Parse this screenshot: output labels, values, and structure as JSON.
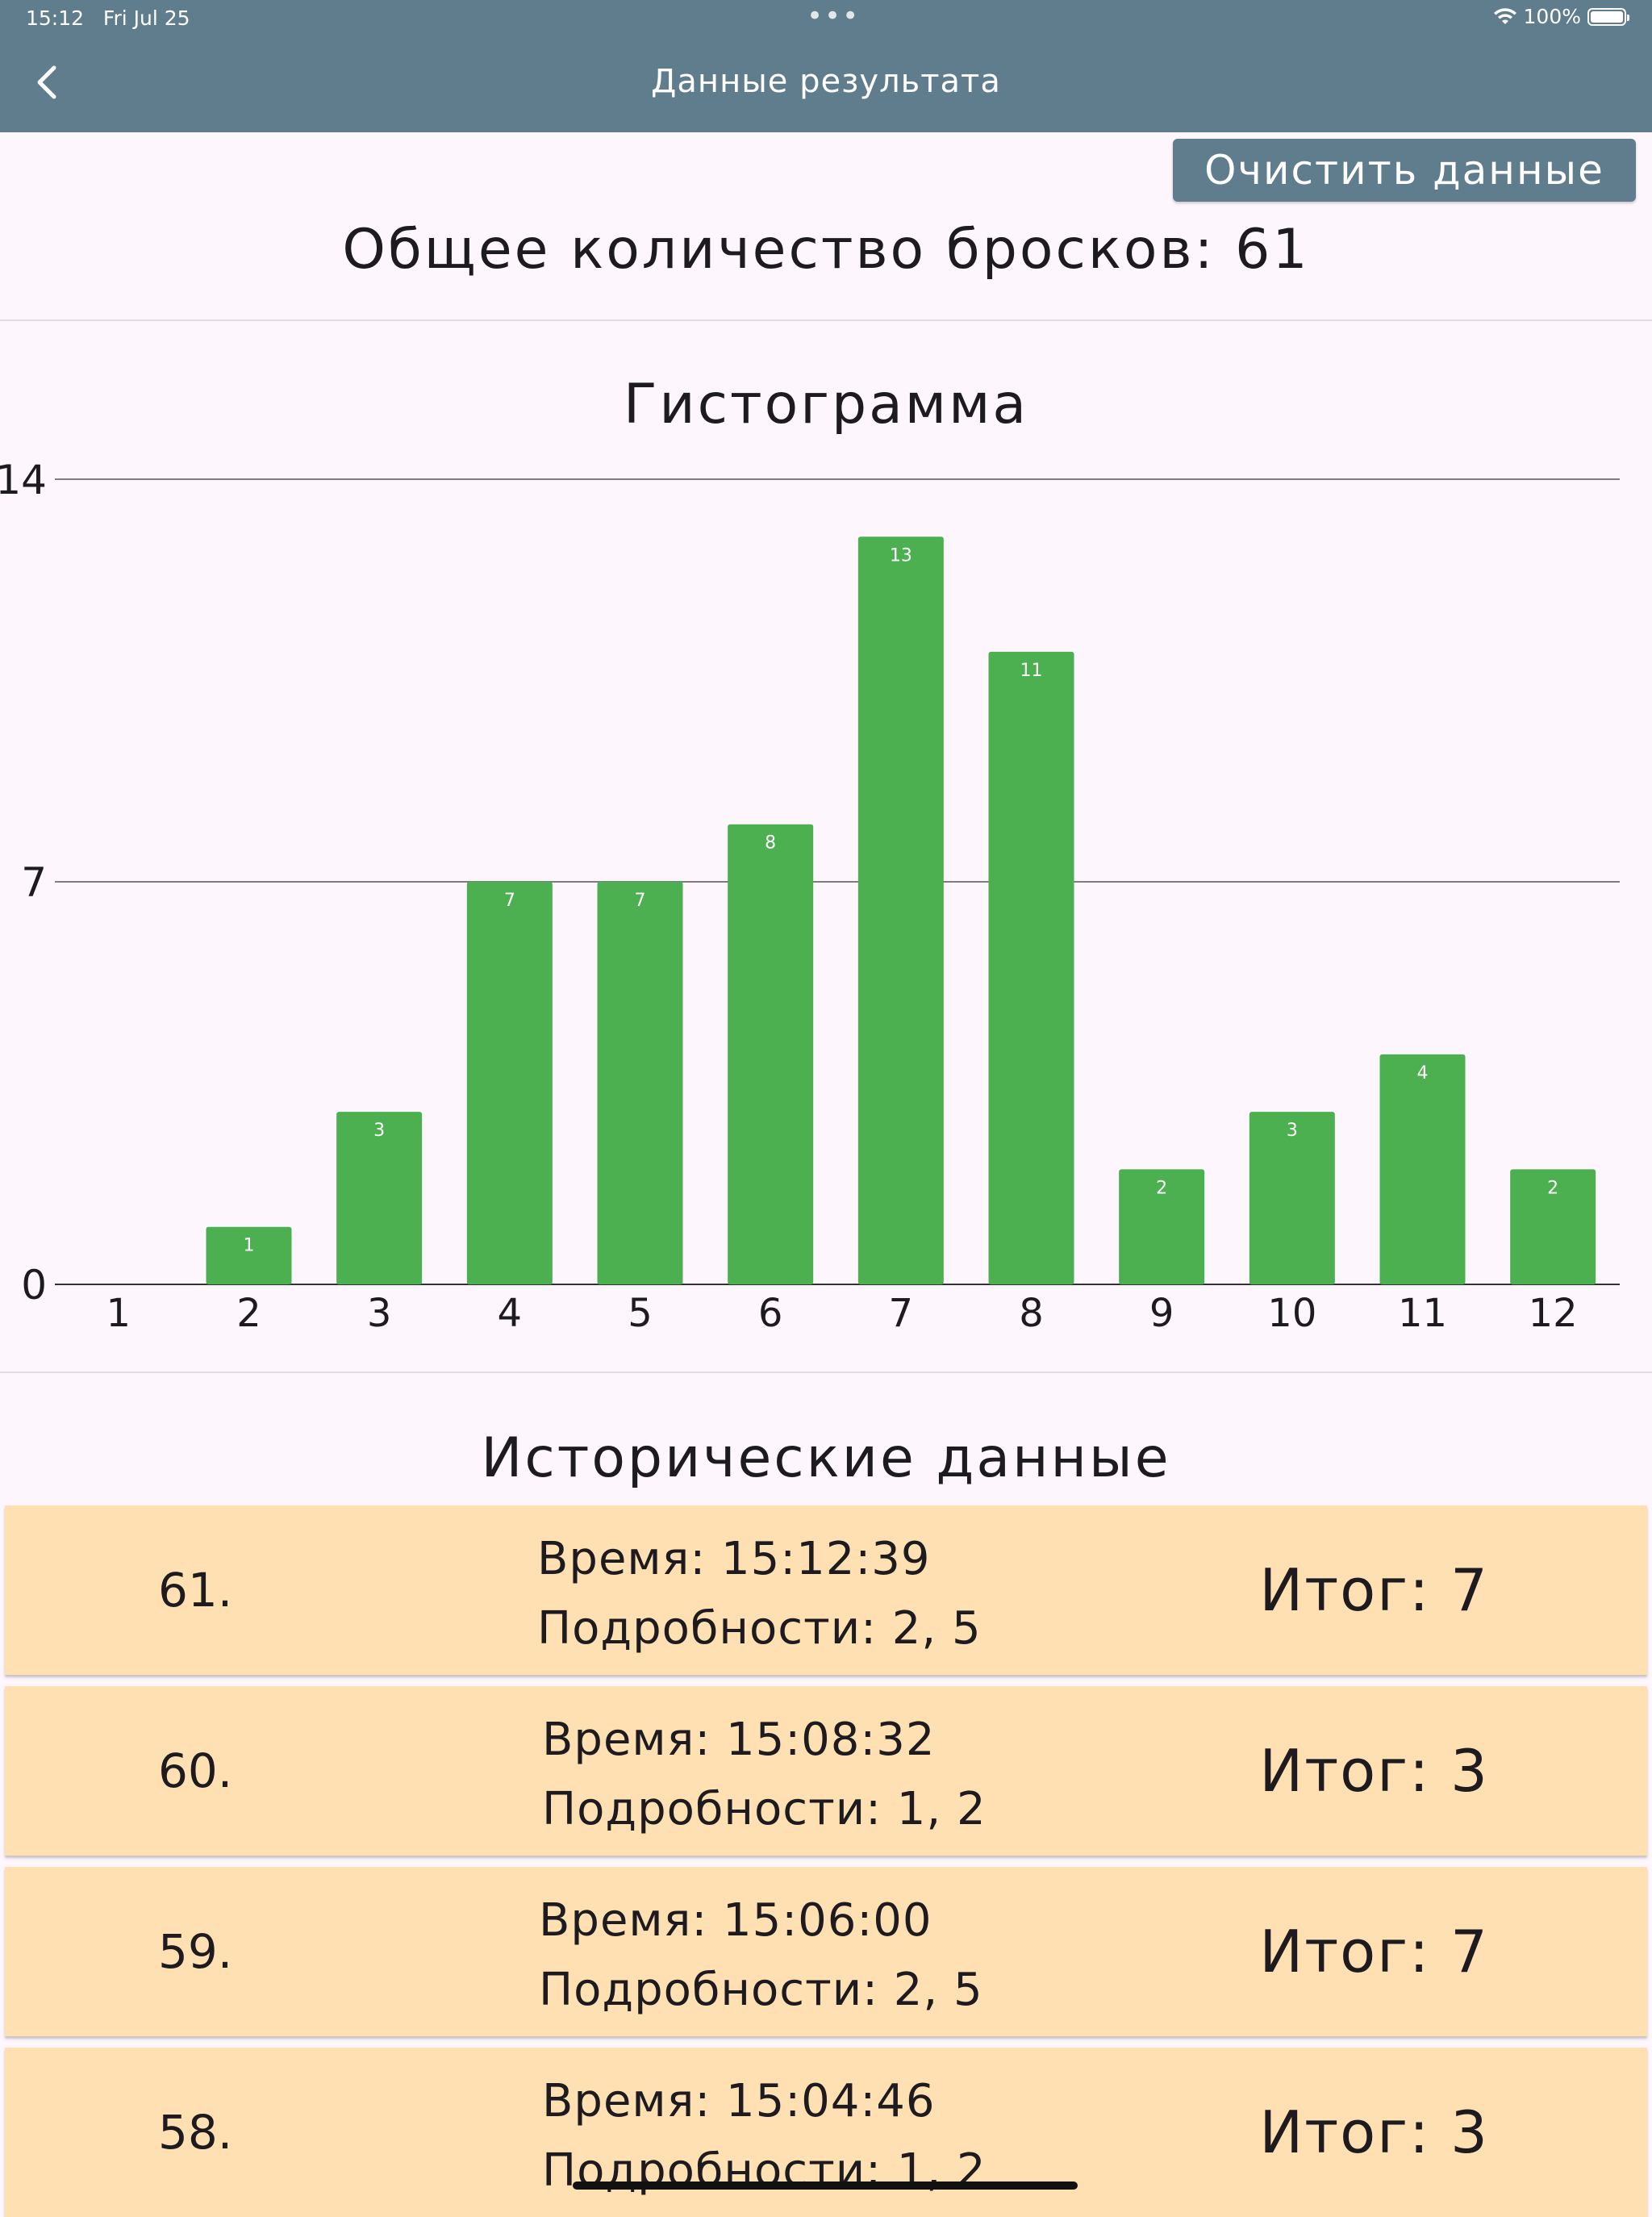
{
  "status": {
    "time": "15:12",
    "date": "Fri Jul 25",
    "battery": "100%"
  },
  "header": {
    "title": "Данные результата"
  },
  "actions": {
    "clear_label": "Очистить данные"
  },
  "summary": {
    "total_label": "Общее количество бросков: 61"
  },
  "histogram": {
    "title": "Гистограмма"
  },
  "chart_data": {
    "type": "bar",
    "title": "Гистограмма",
    "categories": [
      "1",
      "2",
      "3",
      "4",
      "5",
      "6",
      "7",
      "8",
      "9",
      "10",
      "11",
      "12"
    ],
    "values": [
      0,
      1,
      3,
      7,
      7,
      8,
      13,
      11,
      2,
      3,
      4,
      2
    ],
    "ylim": [
      0,
      14
    ],
    "yticks": [
      0,
      7,
      14
    ],
    "grid": true,
    "color": "#4caf50"
  },
  "history": {
    "title": "Исторические данные",
    "rows": [
      {
        "num": "61.",
        "time": "Время: 15:12:39",
        "details": "Подробности: 2, 5",
        "result": "Итог: 7"
      },
      {
        "num": "60.",
        "time": "Время: 15:08:32",
        "details": "Подробности: 1, 2",
        "result": "Итог: 3"
      },
      {
        "num": "59.",
        "time": "Время: 15:06:00",
        "details": "Подробности: 2, 5",
        "result": "Итог: 7"
      },
      {
        "num": "58.",
        "time": "Время: 15:04:46",
        "details": "Подробности: 1, 2",
        "result": "Итог: 3"
      }
    ]
  },
  "colors": {
    "appbar": "#5f7d8c",
    "row_bg": "#ffe0b2",
    "bar": "#4caf50",
    "page_bg": "#fdf7fd"
  }
}
